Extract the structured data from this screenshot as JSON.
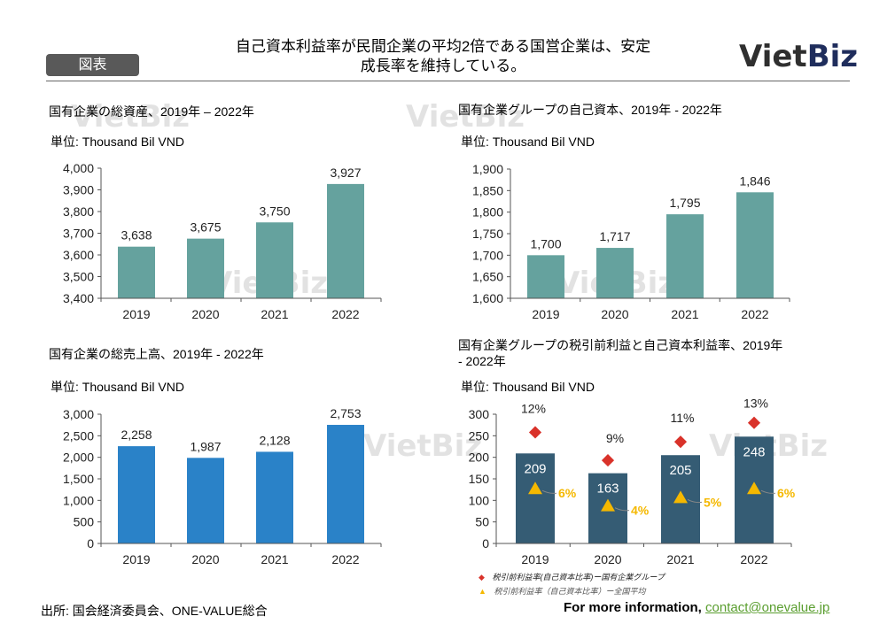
{
  "header": {
    "tag_label": "図表",
    "title_line1": "自己資本利益率が民間企業の平均2倍である国営企業は、安定",
    "title_line2": "成長率を維持している。",
    "logo_part1": "Viet",
    "logo_part2": "Biz",
    "logo_colors": {
      "viet": "#2f2f2f",
      "biz": "#1f2d5c"
    }
  },
  "watermark": "VietBiz",
  "footer": {
    "source": "出所: 国会経済委員会、ONE-VALUE総合",
    "more_info": "For more information, ",
    "contact": "contact@onevalue.jp"
  },
  "chart_data": [
    {
      "type": "bar",
      "title": "国有企業の総資産、2019年 – 2022年",
      "unit": "単位: Thousand Bil VND",
      "categories": [
        "2019",
        "2020",
        "2021",
        "2022"
      ],
      "values": [
        3638,
        3675,
        3750,
        3927
      ],
      "labels": [
        "3,638",
        "3,675",
        "3,750",
        "3,927"
      ],
      "yticks": [
        "4,000",
        "3,900",
        "3,800",
        "3,700",
        "3,600",
        "3,500",
        "3,400"
      ],
      "ylim": [
        3400,
        4000
      ],
      "color": "#65a29e"
    },
    {
      "type": "bar",
      "title": "国有企業グループの自己資本、2019年 - 2022年",
      "unit": "単位: Thousand Bil VND",
      "categories": [
        "2019",
        "2020",
        "2021",
        "2022"
      ],
      "values": [
        1700,
        1717,
        1795,
        1846
      ],
      "labels": [
        "1,700",
        "1,717",
        "1,795",
        "1,846"
      ],
      "yticks": [
        "1,900",
        "1,850",
        "1,800",
        "1,750",
        "1,700",
        "1,650",
        "1,600"
      ],
      "ylim": [
        1600,
        1900
      ],
      "color": "#65a29e"
    },
    {
      "type": "bar",
      "title": "国有企業の総売上高、2019年 - 2022年",
      "unit": "単位: Thousand Bil VND",
      "categories": [
        "2019",
        "2020",
        "2021",
        "2022"
      ],
      "values": [
        2258,
        1987,
        2128,
        2753
      ],
      "labels": [
        "2,258",
        "1,987",
        "2,128",
        "2,753"
      ],
      "yticks": [
        "3,000",
        "2,500",
        "2,000",
        "1,500",
        "1,000",
        "500",
        "0"
      ],
      "ylim": [
        0,
        3000
      ],
      "color": "#2a82c8"
    },
    {
      "type": "bar",
      "title_line1": "国有企業グループの税引前利益と自己資本利益率、2019年",
      "title_line2": "- 2022年",
      "unit": "単位: Thousand Bil VND",
      "categories": [
        "2019",
        "2020",
        "2021",
        "2022"
      ],
      "values": [
        209,
        163,
        205,
        248
      ],
      "labels": [
        "209",
        "163",
        "205",
        "248"
      ],
      "yticks": [
        "300",
        "250",
        "200",
        "150",
        "100",
        "50",
        "0"
      ],
      "ylim": [
        0,
        300
      ],
      "color": "#355c74",
      "series": [
        {
          "name": "税引前利益率(自己資本比率)ー国有企業グループ",
          "marker": "diamond",
          "color": "#d9322a",
          "values_pct": [
            12,
            9,
            11,
            13
          ],
          "labels": [
            "12%",
            "9%",
            "11%",
            "13%"
          ],
          "plot_y": [
            258,
            193,
            236,
            280
          ]
        },
        {
          "name": "税引前利益率（自己資本比率）ー全国平均",
          "marker": "triangle",
          "color": "#f5b800",
          "values_pct": [
            6,
            4,
            5,
            6
          ],
          "labels": [
            "6%",
            "4%",
            "5%",
            "6%"
          ],
          "plot_y": [
            127,
            87,
            106,
            127
          ]
        }
      ]
    }
  ]
}
